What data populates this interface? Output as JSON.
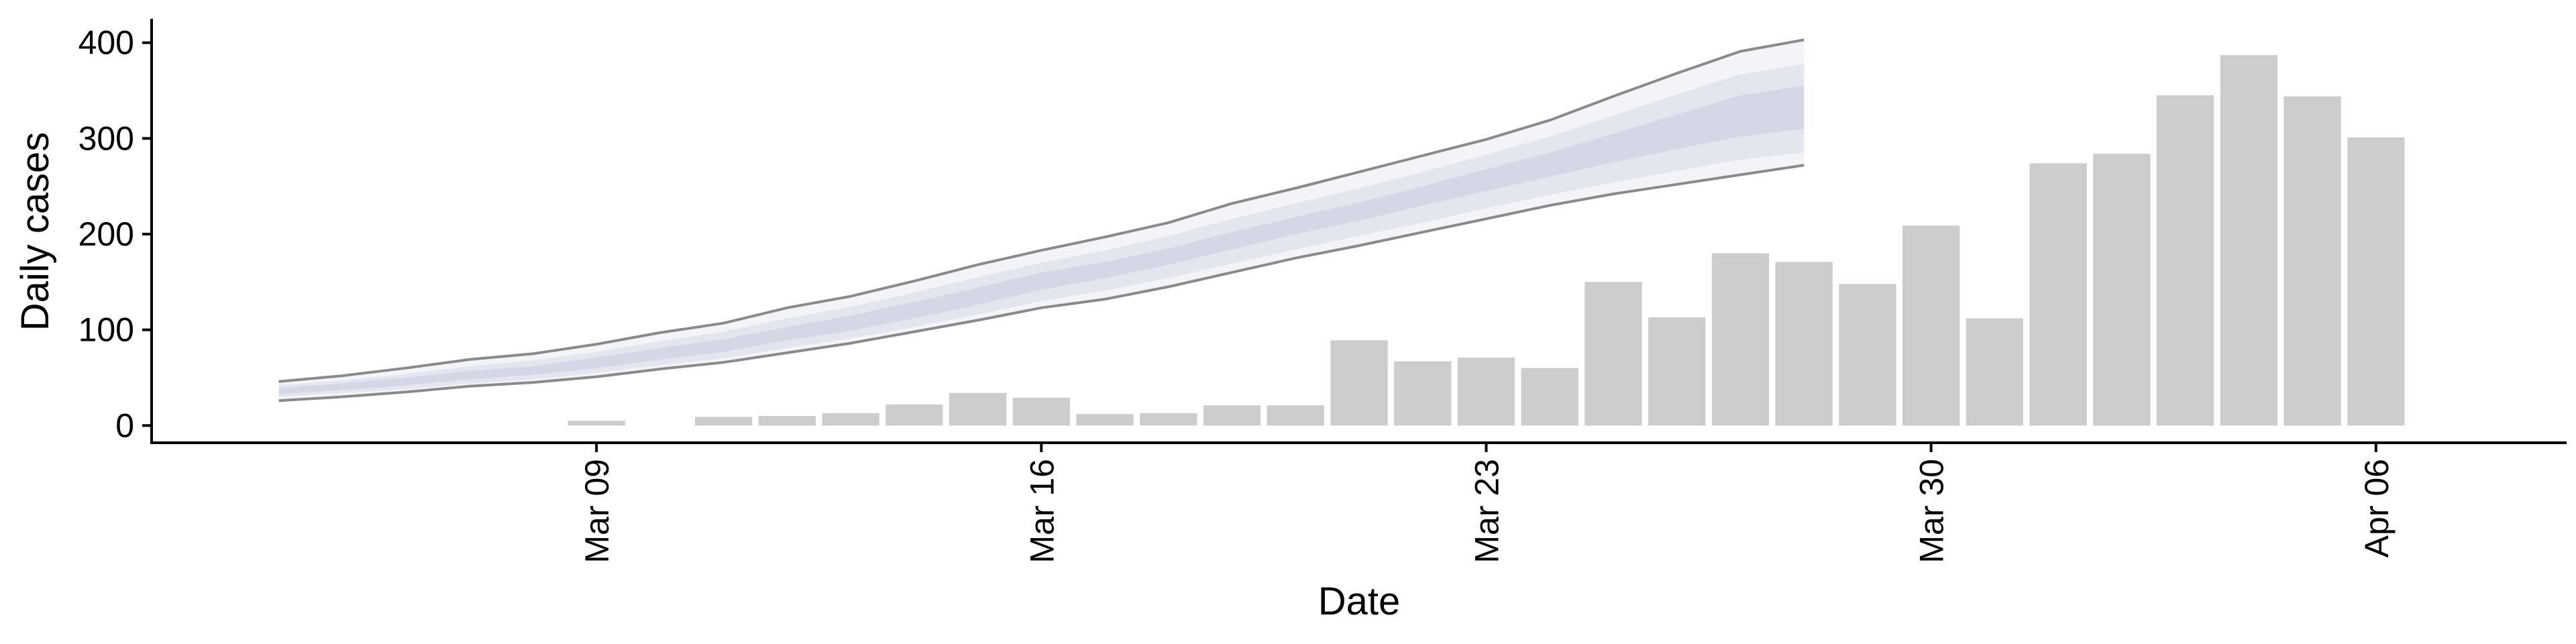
{
  "chart_data": {
    "type": "bar",
    "title": "",
    "xlabel": "Date",
    "ylabel": "Daily cases",
    "ylim": [
      -18,
      425
    ],
    "xlim": [
      "2020-03-02",
      "2020-04-09"
    ],
    "y_ticks": [
      0,
      100,
      200,
      300,
      400
    ],
    "x_ticks": [
      {
        "date": "2020-03-09",
        "label": "Mar 09"
      },
      {
        "date": "2020-03-16",
        "label": "Mar 16"
      },
      {
        "date": "2020-03-23",
        "label": "Mar 23"
      },
      {
        "date": "2020-03-30",
        "label": "Mar 30"
      },
      {
        "date": "2020-04-06",
        "label": "Apr 06"
      }
    ],
    "grid": false,
    "legend": "none",
    "colors": {
      "bars": "#cccccc",
      "band_outer": "#f3f4f8",
      "band_mid": "#e4e6ef",
      "band_inner": "#d3d7e6",
      "band_outline": "#8a8a8a",
      "axis": "#000000"
    },
    "bars": {
      "x": [
        "2020-03-09",
        "2020-03-11",
        "2020-03-12",
        "2020-03-13",
        "2020-03-14",
        "2020-03-15",
        "2020-03-16",
        "2020-03-17",
        "2020-03-18",
        "2020-03-19",
        "2020-03-20",
        "2020-03-21",
        "2020-03-22",
        "2020-03-23",
        "2020-03-24",
        "2020-03-25",
        "2020-03-26",
        "2020-03-27",
        "2020-03-28",
        "2020-03-29",
        "2020-03-30",
        "2020-03-31",
        "2020-04-01",
        "2020-04-02",
        "2020-04-03",
        "2020-04-04",
        "2020-04-05",
        "2020-04-06"
      ],
      "values": [
        5,
        9,
        10,
        13,
        22,
        34,
        29,
        12,
        13,
        21,
        21,
        89,
        67,
        71,
        60,
        150,
        113,
        180,
        171,
        148,
        209,
        112,
        274,
        284,
        345,
        387,
        344,
        301
      ]
    },
    "band": {
      "x": [
        "2020-03-04",
        "2020-03-05",
        "2020-03-06",
        "2020-03-07",
        "2020-03-08",
        "2020-03-09",
        "2020-03-10",
        "2020-03-11",
        "2020-03-12",
        "2020-03-13",
        "2020-03-14",
        "2020-03-15",
        "2020-03-16",
        "2020-03-17",
        "2020-03-18",
        "2020-03-19",
        "2020-03-20",
        "2020-03-21",
        "2020-03-22",
        "2020-03-23",
        "2020-03-24",
        "2020-03-25",
        "2020-03-26",
        "2020-03-27",
        "2020-03-28"
      ],
      "upper_outer": [
        46,
        52,
        60,
        69,
        75,
        85,
        97,
        107,
        123,
        135,
        151,
        168,
        183,
        197,
        212,
        232,
        248,
        265,
        282,
        299,
        319,
        344,
        368,
        391,
        403
      ],
      "upper_mid": [
        42,
        47,
        54,
        62,
        68,
        77,
        88,
        98,
        112,
        124,
        139,
        155,
        170,
        183,
        198,
        216,
        232,
        248,
        265,
        283,
        302,
        324,
        346,
        367,
        378
      ],
      "upper_inner": [
        39,
        44,
        50,
        57,
        62,
        71,
        81,
        90,
        103,
        115,
        129,
        144,
        160,
        171,
        185,
        202,
        218,
        233,
        250,
        268,
        285,
        305,
        325,
        345,
        355
      ],
      "lower_inner": [
        33,
        37,
        42,
        48,
        53,
        60,
        69,
        77,
        89,
        99,
        112,
        126,
        142,
        154,
        168,
        184,
        200,
        214,
        230,
        245,
        260,
        275,
        289,
        302,
        310
      ],
      "lower_mid": [
        30,
        34,
        38,
        44,
        48,
        55,
        63,
        70,
        81,
        91,
        103,
        116,
        130,
        141,
        154,
        169,
        184,
        198,
        212,
        227,
        241,
        254,
        266,
        278,
        285
      ],
      "lower_outer": [
        26,
        30,
        35,
        41,
        45,
        51,
        59,
        66,
        76,
        86,
        98,
        110,
        123,
        132,
        145,
        160,
        175,
        188,
        202,
        216,
        230,
        242,
        252,
        262,
        272
      ]
    }
  }
}
